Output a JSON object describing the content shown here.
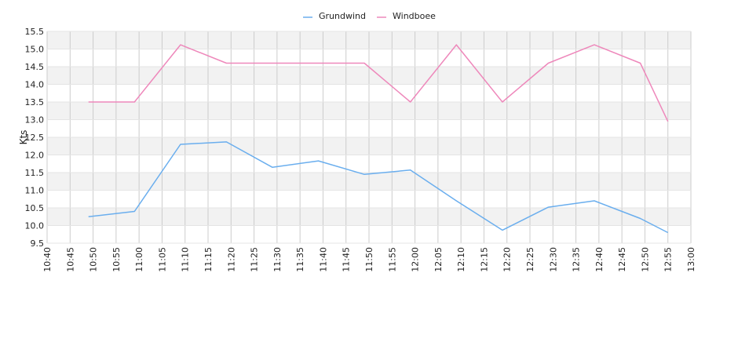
{
  "chart_data": {
    "type": "line",
    "title": "",
    "xlabel": "",
    "ylabel": "Kts",
    "x_ticks": [
      "10:40",
      "10:45",
      "10:50",
      "10:55",
      "11:00",
      "11:05",
      "11:10",
      "11:15",
      "11:20",
      "11:25",
      "11:30",
      "11:35",
      "11:40",
      "11:45",
      "11:50",
      "11:55",
      "12:00",
      "12:05",
      "12:10",
      "12:15",
      "12:20",
      "12:25",
      "12:30",
      "12:35",
      "12:40",
      "12:45",
      "12:50",
      "12:55",
      "13:00"
    ],
    "y_ticks": [
      "9.5",
      "10.0",
      "10.5",
      "11.0",
      "11.5",
      "12.0",
      "12.5",
      "13.0",
      "13.5",
      "14.0",
      "14.5",
      "15.0",
      "15.5"
    ],
    "xlim": [
      "10:40",
      "13:00"
    ],
    "ylim": [
      9.5,
      15.5
    ],
    "grid": true,
    "banded_background": true,
    "legend": {
      "position": "top-center"
    },
    "x": [
      "10:49",
      "10:59",
      "11:09",
      "11:19",
      "11:29",
      "11:39",
      "11:49",
      "11:59",
      "12:09",
      "12:19",
      "12:29",
      "12:39",
      "12:49",
      "12:55"
    ],
    "series": [
      {
        "name": "Grundwind",
        "color": "#6aaeee",
        "values": [
          10.25,
          10.4,
          12.3,
          12.37,
          11.65,
          11.83,
          11.45,
          11.57,
          10.7,
          9.87,
          10.52,
          10.7,
          10.2,
          9.8
        ]
      },
      {
        "name": "Windboee",
        "color": "#ee88bb",
        "values": [
          13.5,
          13.5,
          15.12,
          14.6,
          14.6,
          14.6,
          14.6,
          13.5,
          15.12,
          13.5,
          14.6,
          15.12,
          14.6,
          12.95
        ]
      }
    ]
  }
}
